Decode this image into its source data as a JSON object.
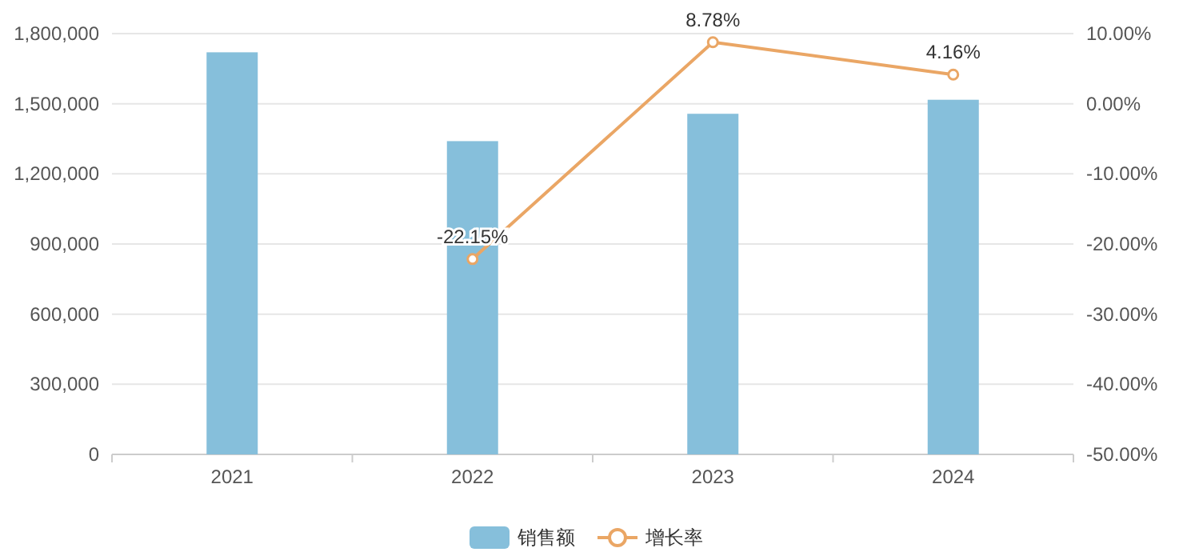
{
  "chart_data": {
    "type": "bar",
    "categories": [
      "2021",
      "2022",
      "2023",
      "2024"
    ],
    "series": [
      {
        "name": "销售额",
        "color": "#86bfdb",
        "values": [
          1720000,
          1340000,
          1457000,
          1517000
        ]
      },
      {
        "name": "增长率",
        "type": "line",
        "axis": "y2",
        "color": "#eaa665",
        "marker": "circle",
        "values": [
          null,
          -22.15,
          8.78,
          4.16
        ],
        "value_labels": [
          null,
          "-22.15%",
          "8.78%",
          "4.16%"
        ]
      }
    ],
    "ylim": [
      0,
      1800000
    ],
    "yticks": [
      {
        "value": 0,
        "label": "0"
      },
      {
        "value": 300000,
        "label": "300,000"
      },
      {
        "value": 600000,
        "label": "600,000"
      },
      {
        "value": 900000,
        "label": "900,000"
      },
      {
        "value": 1200000,
        "label": "1,200,000"
      },
      {
        "value": 1500000,
        "label": "1,500,000"
      },
      {
        "value": 1800000,
        "label": "1,800,000"
      }
    ],
    "y2lim": [
      -50,
      10
    ],
    "y2ticks": [
      {
        "value": -50,
        "label": "-50.00%"
      },
      {
        "value": -40,
        "label": "-40.00%"
      },
      {
        "value": -30,
        "label": "-30.00%"
      },
      {
        "value": -20,
        "label": "-20.00%"
      },
      {
        "value": -10,
        "label": "-10.00%"
      },
      {
        "value": 0,
        "label": "0.00%"
      },
      {
        "value": 10,
        "label": "10.00%"
      }
    ],
    "grid": "y",
    "legend": "bottom"
  }
}
